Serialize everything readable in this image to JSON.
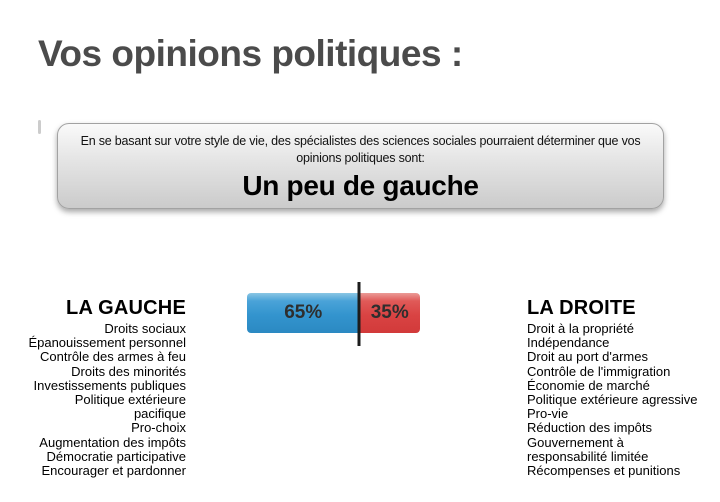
{
  "page": {
    "title": "Vos opinions politiques :"
  },
  "result_box": {
    "description_line1": "En se basant sur votre style de vie, des spécialistes des sciences sociales pourraient déterminer que vos",
    "description_line2": "opinions politiques sont:",
    "verdict": "Un peu de gauche"
  },
  "meter": {
    "left_percent": 65,
    "left_label": "65%",
    "right_percent": 35,
    "right_label": "35%",
    "left_color": "#3394ce",
    "right_color": "#d94343",
    "divider_color": "#1c1c1c"
  },
  "left_column": {
    "heading": "LA GAUCHE",
    "items": [
      "Droits sociaux",
      "Épanouissement personnel",
      "Contrôle des armes à feu",
      "Droits des minorités",
      "Investissements publiques",
      "Politique extérieure",
      "pacifique",
      "Pro-choix",
      "Augmentation des impôts",
      "Démocratie participative",
      "Encourager et pardonner"
    ]
  },
  "right_column": {
    "heading": "LA DROITE",
    "items": [
      "Droit à la propriété",
      "Indépendance",
      "Droit au port d'armes",
      "Contrôle de l'immigration",
      "Économie de marché",
      "Politique extérieure agressive",
      "Pro-vie",
      "Réduction des impôts",
      "Gouvernement à",
      "responsabilité limitée",
      "Récompenses et punitions"
    ]
  }
}
